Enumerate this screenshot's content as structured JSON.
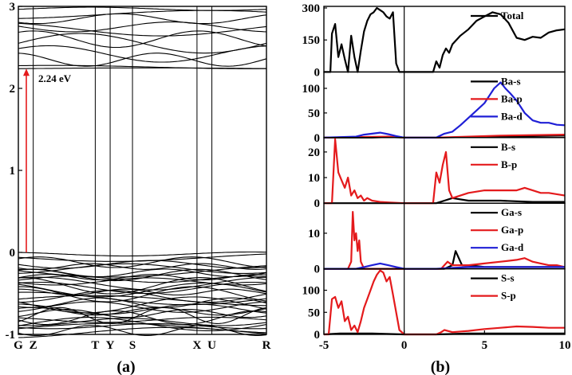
{
  "colors": {
    "black": "#000000",
    "red": "#e41a1c",
    "blue": "#1f1fd6"
  },
  "chart_data": [
    {
      "type": "line",
      "panel": "band-structure",
      "caption": "(a)",
      "ylim": [
        -1,
        3
      ],
      "yticks": [
        "3",
        "2",
        "1",
        "0",
        "-1"
      ],
      "yticks_values": [
        3,
        2,
        1,
        0,
        -1
      ],
      "kpoints": [
        {
          "label": "G",
          "pos": 0.0
        },
        {
          "label": "Z",
          "pos": 0.06
        },
        {
          "label": "T",
          "pos": 0.31
        },
        {
          "label": "Y",
          "pos": 0.37
        },
        {
          "label": "S",
          "pos": 0.46
        },
        {
          "label": "X",
          "pos": 0.72
        },
        {
          "label": "U",
          "pos": 0.78
        },
        {
          "label": "R",
          "pos": 1.0
        }
      ],
      "conduction_band_bottom": 2.24,
      "valence_band_top": 0.0,
      "gap_annotation": "2.24 eV"
    },
    {
      "type": "line",
      "panel": "density-of-states",
      "caption": "(b)",
      "xlim": [
        -5,
        10
      ],
      "xticks": [
        "-5",
        "0",
        "5",
        "10"
      ],
      "xticks_values": [
        -5,
        0,
        5,
        10
      ],
      "subpanels": [
        {
          "ylim": [
            0,
            300
          ],
          "yticks": [
            "300",
            "150",
            "0"
          ],
          "yticks_values": [
            300,
            150,
            0
          ],
          "series": [
            {
              "name": "Total",
              "color": "#000000",
              "x": [
                -5,
                -4.6,
                -4.5,
                -4.3,
                -4.1,
                -3.9,
                -3.7,
                -3.5,
                -3.3,
                -3.1,
                -2.9,
                -2.7,
                -2.5,
                -2.3,
                -2.1,
                -1.9,
                -1.7,
                -1.5,
                -1.3,
                -1.1,
                -0.9,
                -0.7,
                -0.5,
                -0.3,
                -0.1,
                0,
                1.7,
                1.8,
                2,
                2.2,
                2.4,
                2.6,
                2.8,
                3,
                3.5,
                4,
                4.5,
                5,
                5.5,
                6,
                6.5,
                7,
                7.5,
                8,
                8.5,
                9,
                9.5,
                10
              ],
              "y": [
                0,
                0,
                180,
                225,
                70,
                130,
                60,
                0,
                170,
                70,
                0,
                100,
                190,
                240,
                270,
                280,
                300,
                290,
                280,
                260,
                250,
                280,
                40,
                0,
                0,
                0,
                0,
                0,
                50,
                20,
                80,
                110,
                90,
                130,
                170,
                200,
                240,
                260,
                280,
                270,
                230,
                160,
                150,
                165,
                160,
                185,
                195,
                200
              ]
            }
          ]
        },
        {
          "ylim": [
            0,
            130
          ],
          "yticks": [
            "100",
            "50",
            "0"
          ],
          "yticks_values": [
            100,
            50,
            0
          ],
          "series": [
            {
              "name": "Ba-s",
              "color": "#000000",
              "x": [
                -5,
                -2,
                -1,
                0,
                2,
                4,
                6,
                8,
                10
              ],
              "y": [
                0,
                0,
                1,
                0,
                0,
                1,
                2,
                3,
                4
              ]
            },
            {
              "name": "Ba-p",
              "color": "#e41a1c",
              "x": [
                -5,
                -3,
                -1,
                0,
                2,
                4,
                6,
                8,
                10
              ],
              "y": [
                0,
                1,
                2,
                0,
                0,
                2,
                4,
                5,
                6
              ]
            },
            {
              "name": "Ba-d",
              "color": "#1f1fd6",
              "x": [
                -5,
                -4,
                -3,
                -2.5,
                -2,
                -1.5,
                -1,
                -0.5,
                0,
                2,
                2.5,
                3,
                3.5,
                4,
                4.5,
                5,
                5.3,
                5.6,
                6,
                6.3,
                6.6,
                7,
                7.5,
                8,
                8.5,
                9,
                9.5,
                10
              ],
              "y": [
                0,
                1,
                2,
                6,
                8,
                10,
                7,
                3,
                0,
                0,
                8,
                12,
                25,
                40,
                55,
                70,
                85,
                100,
                112,
                100,
                90,
                75,
                50,
                35,
                30,
                30,
                26,
                25
              ]
            }
          ]
        },
        {
          "ylim": [
            0,
            25
          ],
          "yticks": [
            "20",
            "10",
            "0"
          ],
          "yticks_values": [
            20,
            10,
            0
          ],
          "series": [
            {
              "name": "B-s",
              "color": "#000000",
              "x": [
                -5,
                0,
                2,
                2.5,
                3,
                4,
                5,
                6,
                8,
                10
              ],
              "y": [
                0,
                0,
                0,
                1,
                2,
                1,
                1,
                1,
                0.5,
                0.5
              ]
            },
            {
              "name": "B-p",
              "color": "#e41a1c",
              "x": [
                -5,
                -4.5,
                -4.3,
                -4.1,
                -3.9,
                -3.7,
                -3.5,
                -3.3,
                -3.1,
                -2.9,
                -2.7,
                -2.5,
                -2.3,
                -2,
                -1.5,
                -1,
                0,
                1.8,
                2,
                2.2,
                2.4,
                2.6,
                2.8,
                3,
                3.5,
                4,
                5,
                6,
                7,
                7.5,
                8,
                8.5,
                9,
                10
              ],
              "y": [
                0,
                0,
                25,
                12,
                9,
                6,
                10,
                3,
                5,
                2,
                3,
                1,
                2,
                1,
                0.5,
                0.3,
                0,
                0,
                12,
                8,
                15,
                20,
                5,
                2,
                3,
                4,
                5,
                5,
                5,
                6,
                5,
                4,
                4,
                3
              ]
            }
          ]
        },
        {
          "ylim": [
            0,
            18
          ],
          "yticks": [
            "10",
            "0"
          ],
          "yticks_values": [
            10,
            0
          ],
          "series": [
            {
              "name": "Ga-s",
              "color": "#000000",
              "x": [
                -5,
                0,
                2.5,
                3,
                3.2,
                3.4,
                3.6,
                4,
                5,
                8,
                10
              ],
              "y": [
                0,
                0,
                0,
                1,
                5,
                3,
                1,
                1,
                0.5,
                0.5,
                0.5
              ]
            },
            {
              "name": "Ga-p",
              "color": "#e41a1c",
              "x": [
                -5,
                -3.5,
                -3.3,
                -3.2,
                -3.1,
                -3,
                -2.9,
                -2.8,
                -2.7,
                -2.5,
                0,
                2.3,
                2.5,
                2.7,
                3,
                4,
                5,
                6,
                7,
                7.5,
                8,
                8.5,
                9,
                9.5,
                10
              ],
              "y": [
                0,
                0,
                2,
                16,
                8,
                10,
                5,
                8,
                2,
                0,
                0,
                0,
                1,
                2,
                1,
                1,
                1.5,
                2,
                2.5,
                3,
                2,
                1.5,
                1,
                1,
                0.5
              ]
            },
            {
              "name": "Ga-d",
              "color": "#1f1fd6",
              "x": [
                -5,
                -3,
                -2.5,
                -2,
                -1.5,
                -1,
                -0.5,
                0,
                2,
                4,
                6,
                8,
                10
              ],
              "y": [
                0,
                0,
                0.5,
                1,
                1.5,
                1,
                0.5,
                0,
                0,
                0.5,
                0.5,
                0.5,
                0.5
              ]
            }
          ]
        },
        {
          "ylim": [
            0,
            145
          ],
          "yticks": [
            "100",
            "50",
            "0"
          ],
          "yticks_values": [
            100,
            50,
            0
          ],
          "series": [
            {
              "name": "S-s",
              "color": "#000000",
              "x": [
                -5,
                -4,
                -2,
                0,
                2,
                4,
                6,
                8,
                10
              ],
              "y": [
                0,
                2,
                2,
                0,
                0,
                2,
                2,
                2,
                2
              ]
            },
            {
              "name": "S-p",
              "color": "#e41a1c",
              "x": [
                -5,
                -4.7,
                -4.5,
                -4.3,
                -4.1,
                -3.9,
                -3.7,
                -3.5,
                -3.3,
                -3.1,
                -2.9,
                -2.7,
                -2.5,
                -2.3,
                -2.1,
                -1.9,
                -1.7,
                -1.5,
                -1.3,
                -1.1,
                -0.9,
                -0.7,
                -0.5,
                -0.3,
                0,
                2,
                2.3,
                2.5,
                3,
                4,
                5,
                6,
                7,
                8,
                9,
                10
              ],
              "y": [
                0,
                0,
                80,
                85,
                60,
                75,
                30,
                40,
                10,
                20,
                5,
                30,
                60,
                80,
                100,
                120,
                135,
                145,
                140,
                120,
                130,
                90,
                50,
                10,
                0,
                0,
                5,
                10,
                5,
                8,
                12,
                15,
                18,
                17,
                15,
                15
              ]
            }
          ]
        }
      ]
    }
  ]
}
